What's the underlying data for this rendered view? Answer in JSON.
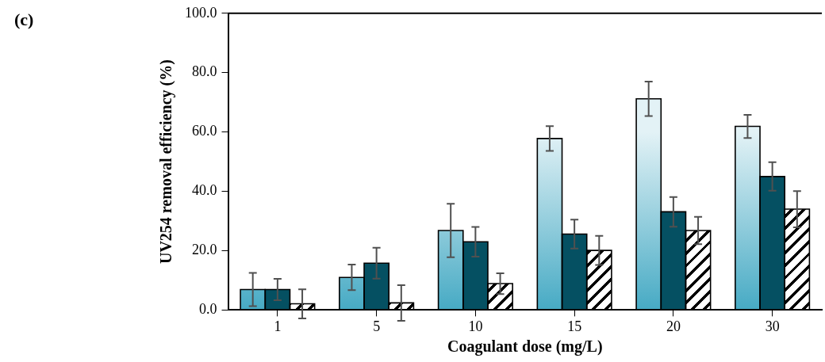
{
  "chart_data": {
    "type": "bar",
    "xlabel": "Coagulant dose (mg/L)",
    "ylabel": "UV254 removal efficiency (%)",
    "annotations": [
      "(c)"
    ],
    "categories": [
      "1",
      "5",
      "10",
      "15",
      "20",
      "30"
    ],
    "series": [
      {
        "color": "#46aac4",
        "values": [
          6.9,
          11.0,
          26.8,
          57.8,
          71.2,
          61.9
        ],
        "errors": [
          5.6,
          4.3,
          9.0,
          4.2,
          5.8,
          3.9
        ]
      },
      {
        "color": "#055062",
        "values": [
          6.9,
          15.8,
          23.0,
          25.6,
          33.1,
          45.0
        ],
        "errors": [
          3.6,
          5.2,
          5.0,
          4.9,
          5.0,
          4.8
        ]
      },
      {
        "color": "#ffffff",
        "values": [
          2.1,
          2.4,
          8.9,
          20.1,
          26.8,
          34.0
        ],
        "errors": [
          4.9,
          6.0,
          3.5,
          4.9,
          4.6,
          6.1
        ]
      }
    ],
    "ylim": [
      0,
      100
    ],
    "yticks": [
      {
        "value": 0,
        "label": "0.0"
      },
      {
        "value": 20,
        "label": "20.0"
      },
      {
        "value": 40,
        "label": "40.0"
      },
      {
        "value": 60,
        "label": "60.0"
      },
      {
        "value": 80,
        "label": "80.0"
      },
      {
        "value": 100,
        "label": "100.0"
      }
    ],
    "grid": false,
    "legend": false
  }
}
